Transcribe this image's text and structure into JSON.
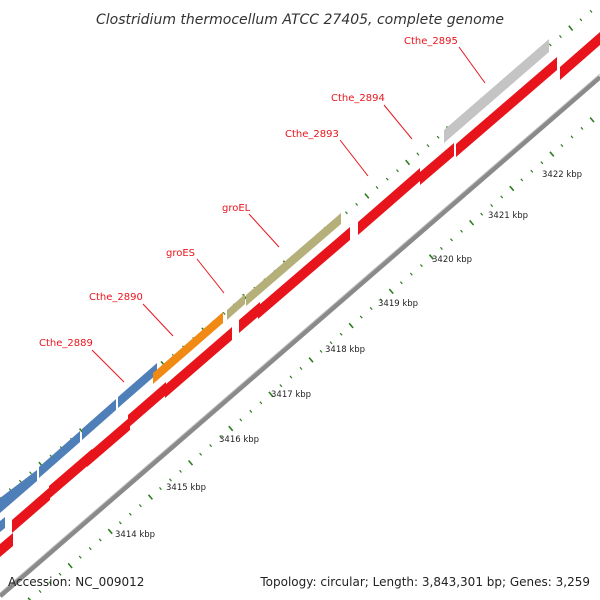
{
  "title": "Clostridium thermocellum ATCC 27405, complete genome",
  "footer": {
    "accession": "Accession: NC_009012",
    "summary": "Topology: circular; Length: 3,843,301 bp; Genes: 3,259"
  },
  "colors": {
    "backbone": "#8a8a8a",
    "cds": "#e8141c",
    "label": "#e8141c",
    "tick": "#2e7d1f"
  },
  "scale": {
    "labels": [
      "3414 kbp",
      "3415 kbp",
      "3416 kbp",
      "3417 kbp",
      "3418 kbp",
      "3419 kbp",
      "3420 kbp",
      "3421 kbp",
      "3422 kbp"
    ]
  },
  "gene_labels": [
    "Cthe_2889",
    "Cthe_2890",
    "groES",
    "groEL",
    "Cthe_2893",
    "Cthe_2894",
    "Cthe_2895"
  ],
  "features": [
    {
      "name": "Cthe_2889",
      "color": "#4f7fb8"
    },
    {
      "name": "Cthe_2890",
      "color": "#f08a14"
    },
    {
      "name": "groES",
      "color": "#b5b07a"
    },
    {
      "name": "groEL",
      "color": "#b5b07a"
    },
    {
      "name": "Cthe_2895",
      "color": "#c4c4c4"
    }
  ]
}
